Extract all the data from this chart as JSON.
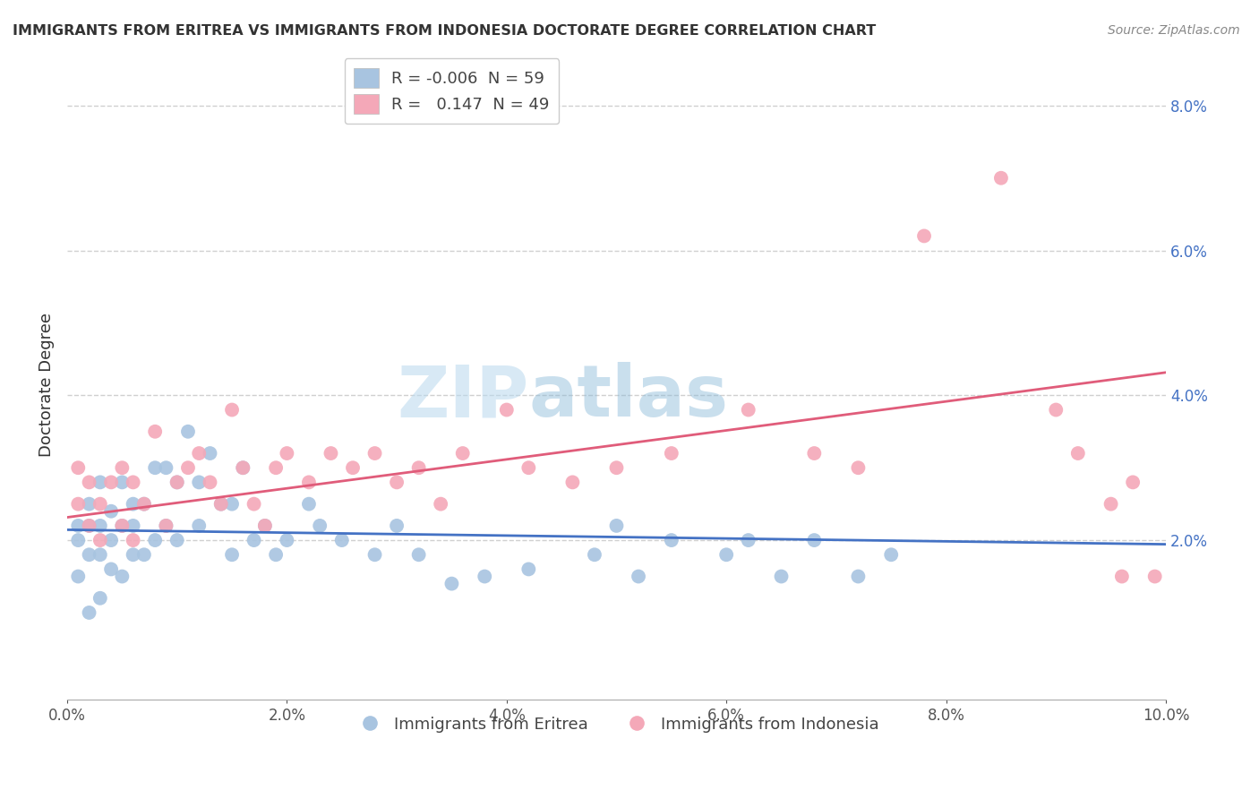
{
  "title": "IMMIGRANTS FROM ERITREA VS IMMIGRANTS FROM INDONESIA DOCTORATE DEGREE CORRELATION CHART",
  "source_text": "Source: ZipAtlas.com",
  "ylabel": "Doctorate Degree",
  "xlabel": "",
  "xlim": [
    0.0,
    0.1
  ],
  "ylim": [
    -0.002,
    0.085
  ],
  "plot_ylim": [
    0.0,
    0.085
  ],
  "xticks": [
    0.0,
    0.02,
    0.04,
    0.06,
    0.08,
    0.1
  ],
  "xticklabels": [
    "0.0%",
    "2.0%",
    "4.0%",
    "6.0%",
    "8.0%",
    "10.0%"
  ],
  "yticks_right": [
    0.02,
    0.04,
    0.06,
    0.08
  ],
  "yticklabels_right": [
    "2.0%",
    "4.0%",
    "6.0%",
    "8.0%"
  ],
  "blue_color": "#a8c4e0",
  "pink_color": "#f4a8b8",
  "blue_line_color": "#4472c4",
  "pink_line_color": "#e05c7a",
  "legend_blue_label": "R = -0.006  N = 59",
  "legend_pink_label": "R =   0.147  N = 49",
  "legend1_label": "Immigrants from Eritrea",
  "legend2_label": "Immigrants from Indonesia",
  "watermark_text": "ZIPatlas",
  "blue_scatter_x": [
    0.001,
    0.001,
    0.001,
    0.002,
    0.002,
    0.002,
    0.002,
    0.003,
    0.003,
    0.003,
    0.003,
    0.004,
    0.004,
    0.004,
    0.005,
    0.005,
    0.005,
    0.006,
    0.006,
    0.006,
    0.007,
    0.007,
    0.008,
    0.008,
    0.009,
    0.009,
    0.01,
    0.01,
    0.011,
    0.012,
    0.012,
    0.013,
    0.014,
    0.015,
    0.015,
    0.016,
    0.017,
    0.018,
    0.019,
    0.02,
    0.022,
    0.023,
    0.025,
    0.028,
    0.03,
    0.032,
    0.035,
    0.038,
    0.042,
    0.048,
    0.05,
    0.052,
    0.055,
    0.06,
    0.062,
    0.065,
    0.068,
    0.072,
    0.075
  ],
  "blue_scatter_y": [
    0.015,
    0.02,
    0.022,
    0.01,
    0.018,
    0.022,
    0.025,
    0.012,
    0.018,
    0.022,
    0.028,
    0.016,
    0.02,
    0.024,
    0.015,
    0.022,
    0.028,
    0.018,
    0.022,
    0.025,
    0.018,
    0.025,
    0.02,
    0.03,
    0.022,
    0.03,
    0.02,
    0.028,
    0.035,
    0.022,
    0.028,
    0.032,
    0.025,
    0.018,
    0.025,
    0.03,
    0.02,
    0.022,
    0.018,
    0.02,
    0.025,
    0.022,
    0.02,
    0.018,
    0.022,
    0.018,
    0.014,
    0.015,
    0.016,
    0.018,
    0.022,
    0.015,
    0.02,
    0.018,
    0.02,
    0.015,
    0.02,
    0.015,
    0.018
  ],
  "pink_scatter_x": [
    0.001,
    0.001,
    0.002,
    0.002,
    0.003,
    0.003,
    0.004,
    0.005,
    0.005,
    0.006,
    0.006,
    0.007,
    0.008,
    0.009,
    0.01,
    0.011,
    0.012,
    0.013,
    0.014,
    0.015,
    0.016,
    0.017,
    0.018,
    0.019,
    0.02,
    0.022,
    0.024,
    0.026,
    0.028,
    0.03,
    0.032,
    0.034,
    0.036,
    0.04,
    0.042,
    0.046,
    0.05,
    0.055,
    0.062,
    0.068,
    0.072,
    0.078,
    0.085,
    0.09,
    0.092,
    0.095,
    0.096,
    0.097,
    0.099
  ],
  "pink_scatter_y": [
    0.025,
    0.03,
    0.022,
    0.028,
    0.02,
    0.025,
    0.028,
    0.022,
    0.03,
    0.02,
    0.028,
    0.025,
    0.035,
    0.022,
    0.028,
    0.03,
    0.032,
    0.028,
    0.025,
    0.038,
    0.03,
    0.025,
    0.022,
    0.03,
    0.032,
    0.028,
    0.032,
    0.03,
    0.032,
    0.028,
    0.03,
    0.025,
    0.032,
    0.038,
    0.03,
    0.028,
    0.03,
    0.032,
    0.038,
    0.032,
    0.03,
    0.062,
    0.07,
    0.038,
    0.032,
    0.025,
    0.015,
    0.028,
    0.015
  ]
}
